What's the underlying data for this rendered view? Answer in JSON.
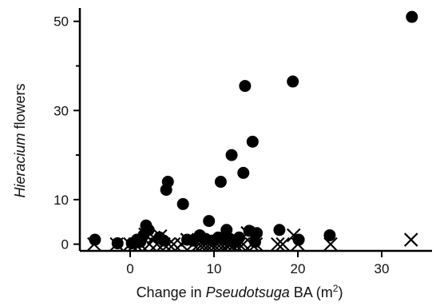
{
  "chart_data": {
    "type": "scatter",
    "xlabel": {
      "prefix": "Change in ",
      "italic": "Pseudotsuga",
      "suffix": " BA (m",
      "sup": "2",
      "close": ")"
    },
    "ylabel": {
      "italic": "Hieracium",
      "suffix": " flowers"
    },
    "xlim": [
      -6,
      36
    ],
    "ylim": [
      -1.5,
      53
    ],
    "x_ticks": [
      {
        "value": 0,
        "label": "0"
      },
      {
        "value": 10,
        "label": "10"
      },
      {
        "value": 20,
        "label": "20"
      },
      {
        "value": 30,
        "label": "30"
      }
    ],
    "y_ticks": [
      {
        "value": 0,
        "label": "0"
      },
      {
        "value": 10,
        "label": "10"
      },
      {
        "value": 30,
        "label": "30"
      },
      {
        "value": 50,
        "label": "50"
      }
    ],
    "y_minor_ticks": [
      20,
      40
    ],
    "grid": false,
    "series": [
      {
        "marker": "circle",
        "color": "#000000",
        "x": [
          -4.2,
          -1.5,
          0.2,
          0.8,
          1.2,
          1.6,
          1.9,
          2.2,
          3.5,
          4.3,
          4.0,
          4.5,
          6.3,
          6.8,
          7.5,
          8.3,
          9.0,
          9.4,
          9.8,
          10.5,
          10.8,
          11.2,
          11.5,
          11.9,
          12.1,
          12.6,
          13.0,
          13.5,
          13.7,
          14.2,
          14.6,
          14.9,
          15.1,
          17.8,
          19.4,
          20.1,
          23.8,
          33.6
        ],
        "y": [
          1.0,
          0.2,
          0.2,
          1.0,
          0.5,
          2.0,
          4.2,
          3.2,
          1.5,
          12.2,
          0.8,
          14.0,
          9.0,
          1.0,
          0.8,
          2.0,
          1.2,
          5.2,
          0.8,
          1.5,
          14.0,
          1.2,
          3.2,
          1.2,
          20.0,
          0.5,
          1.5,
          16.0,
          35.5,
          3.0,
          23.0,
          0.5,
          2.5,
          3.2,
          36.5,
          1.0,
          2.0,
          51.0
        ]
      },
      {
        "marker": "x",
        "color": "#000000",
        "x": [
          -4.3,
          -1.6,
          0.0,
          0.6,
          1.2,
          1.8,
          2.3,
          2.8,
          3.2,
          3.6,
          4.0,
          4.6,
          5.2,
          6.1,
          6.8,
          7.5,
          8.2,
          8.6,
          9.0,
          9.5,
          9.9,
          10.4,
          10.8,
          11.3,
          11.7,
          12.0,
          12.5,
          13.0,
          13.5,
          14.0,
          14.5,
          15.0,
          17.6,
          18.2,
          19.5,
          20.0,
          23.9,
          33.5
        ],
        "y": [
          0,
          0,
          0,
          0,
          0,
          2.2,
          0,
          1.5,
          0,
          1.8,
          0,
          0,
          0,
          0,
          1.0,
          0,
          0,
          0,
          0,
          0,
          0,
          0,
          0,
          0,
          0,
          0,
          0,
          0,
          0,
          2.5,
          0,
          0,
          0,
          0,
          2.0,
          0,
          0,
          1.0
        ]
      }
    ]
  }
}
